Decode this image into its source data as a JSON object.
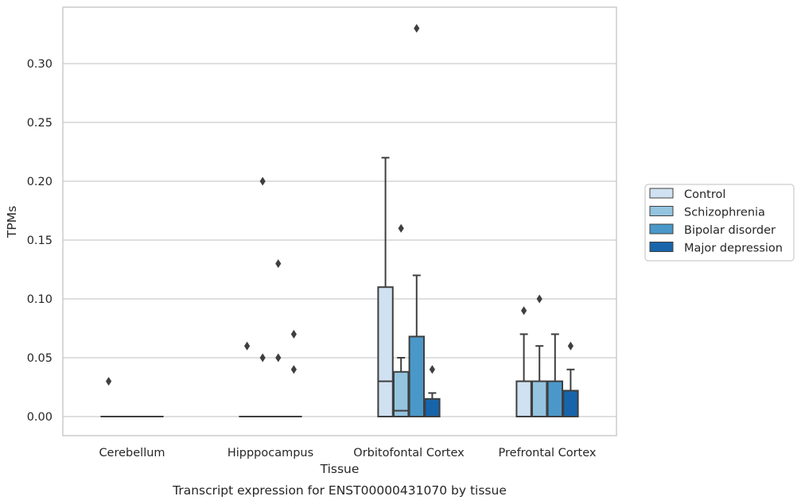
{
  "chart_data": {
    "type": "box",
    "xlabel": "Tissue",
    "ylabel": "TPMs",
    "caption": "Transcript expression for ENST00000431070 by tissue",
    "categories": [
      "Cerebellum",
      "Hipppocampus",
      "Orbitofontal Cortex",
      "Prefrontal Cortex"
    ],
    "ylim": [
      -0.016,
      0.348
    ],
    "yticks": [
      0.0,
      0.05,
      0.1,
      0.15,
      0.2,
      0.25,
      0.3
    ],
    "ytick_labels": [
      "0.00",
      "0.05",
      "0.10",
      "0.15",
      "0.20",
      "0.25",
      "0.30"
    ],
    "grid": true,
    "legend_position": "right",
    "series": [
      {
        "name": "Control",
        "color": "#d0e1f2"
      },
      {
        "name": "Schizophrenia",
        "color": "#94c4df"
      },
      {
        "name": "Bipolar disorder",
        "color": "#4a98c9"
      },
      {
        "name": "Major depression",
        "color": "#1764ab"
      }
    ],
    "boxes": [
      {
        "category": "Cerebellum",
        "series": "Control",
        "min": 0,
        "q1": 0,
        "median": 0,
        "q3": 0,
        "max": 0,
        "outliers": [
          0.03
        ]
      },
      {
        "category": "Cerebellum",
        "series": "Schizophrenia",
        "min": 0,
        "q1": 0,
        "median": 0,
        "q3": 0,
        "max": 0,
        "outliers": []
      },
      {
        "category": "Cerebellum",
        "series": "Bipolar disorder",
        "min": 0,
        "q1": 0,
        "median": 0,
        "q3": 0,
        "max": 0,
        "outliers": []
      },
      {
        "category": "Cerebellum",
        "series": "Major depression",
        "min": 0,
        "q1": 0,
        "median": 0,
        "q3": 0,
        "max": 0,
        "outliers": []
      },
      {
        "category": "Hipppocampus",
        "series": "Control",
        "min": 0,
        "q1": 0,
        "median": 0,
        "q3": 0,
        "max": 0,
        "outliers": [
          0.06
        ]
      },
      {
        "category": "Hipppocampus",
        "series": "Schizophrenia",
        "min": 0,
        "q1": 0,
        "median": 0,
        "q3": 0,
        "max": 0,
        "outliers": [
          0.2,
          0.05
        ]
      },
      {
        "category": "Hipppocampus",
        "series": "Bipolar disorder",
        "min": 0,
        "q1": 0,
        "median": 0,
        "q3": 0,
        "max": 0,
        "outliers": [
          0.13,
          0.05
        ]
      },
      {
        "category": "Hipppocampus",
        "series": "Major depression",
        "min": 0,
        "q1": 0,
        "median": 0,
        "q3": 0,
        "max": 0,
        "outliers": [
          0.07,
          0.04
        ]
      },
      {
        "category": "Orbitofontal Cortex",
        "series": "Control",
        "min": 0,
        "q1": 0,
        "median": 0.03,
        "q3": 0.11,
        "max": 0.22,
        "outliers": []
      },
      {
        "category": "Orbitofontal Cortex",
        "series": "Schizophrenia",
        "min": 0,
        "q1": 0,
        "median": 0.005,
        "q3": 0.038,
        "max": 0.05,
        "outliers": [
          0.16
        ]
      },
      {
        "category": "Orbitofontal Cortex",
        "series": "Bipolar disorder",
        "min": 0,
        "q1": 0,
        "median": 0,
        "q3": 0.068,
        "max": 0.12,
        "outliers": [
          0.33
        ]
      },
      {
        "category": "Orbitofontal Cortex",
        "series": "Major depression",
        "min": 0,
        "q1": 0,
        "median": 0,
        "q3": 0.015,
        "max": 0.02,
        "outliers": [
          0.04
        ]
      },
      {
        "category": "Prefrontal Cortex",
        "series": "Control",
        "min": 0,
        "q1": 0,
        "median": 0,
        "q3": 0.03,
        "max": 0.07,
        "outliers": [
          0.09
        ]
      },
      {
        "category": "Prefrontal Cortex",
        "series": "Schizophrenia",
        "min": 0,
        "q1": 0,
        "median": 0,
        "q3": 0.03,
        "max": 0.06,
        "outliers": [
          0.1
        ]
      },
      {
        "category": "Prefrontal Cortex",
        "series": "Bipolar disorder",
        "min": 0,
        "q1": 0,
        "median": 0,
        "q3": 0.03,
        "max": 0.07,
        "outliers": []
      },
      {
        "category": "Prefrontal Cortex",
        "series": "Major depression",
        "min": 0,
        "q1": 0,
        "median": 0,
        "q3": 0.022,
        "max": 0.04,
        "outliers": [
          0.06
        ]
      }
    ]
  }
}
